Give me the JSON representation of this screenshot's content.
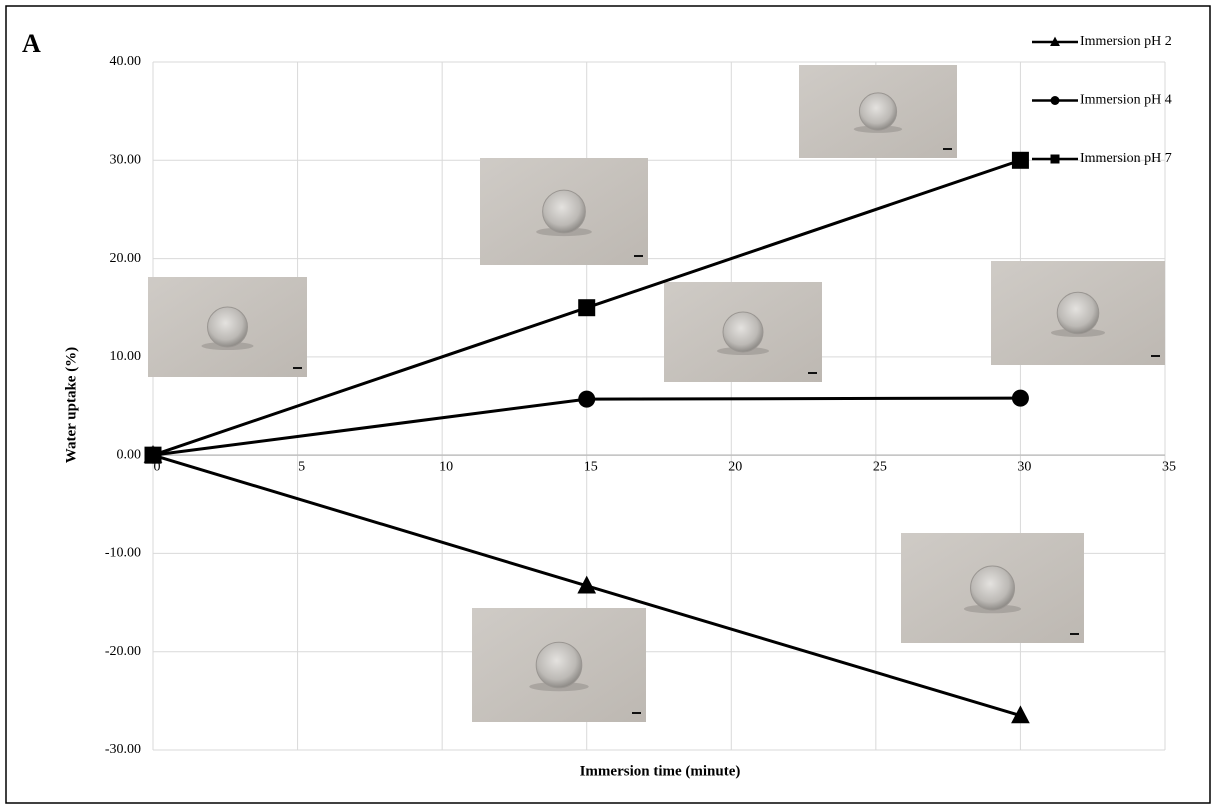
{
  "chart_data": {
    "type": "line",
    "panel_label": "A",
    "x_label": "Immersion time (minute)",
    "y_label": "Water uptake (%)",
    "xlim": [
      0,
      35
    ],
    "xticks": [
      0,
      5,
      10,
      15,
      20,
      25,
      30,
      35
    ],
    "ylim": [
      -30,
      40
    ],
    "yticks": [
      {
        "value": -30,
        "label": "-30.00"
      },
      {
        "value": -20,
        "label": "-20.00"
      },
      {
        "value": -10,
        "label": "-10.00"
      },
      {
        "value": 0,
        "label": "0.00"
      },
      {
        "value": 10,
        "label": "10.00"
      },
      {
        "value": 20,
        "label": "20.00"
      },
      {
        "value": 30,
        "label": "30.00"
      },
      {
        "value": 40,
        "label": "40.00"
      }
    ],
    "grid": true,
    "legend": "top-right",
    "x": [
      0,
      15,
      30
    ],
    "series": [
      {
        "name": "Immersion pH 2",
        "color": "#000000",
        "marker": "triangle",
        "values": [
          0,
          -13.3,
          -26.5
        ]
      },
      {
        "name": "Immersion pH 4",
        "color": "#000000",
        "marker": "circle",
        "values": [
          0,
          5.7,
          5.8
        ]
      },
      {
        "name": "Immersion pH 7",
        "color": "#000000",
        "marker": "square",
        "values": [
          0,
          15,
          30
        ]
      }
    ]
  }
}
